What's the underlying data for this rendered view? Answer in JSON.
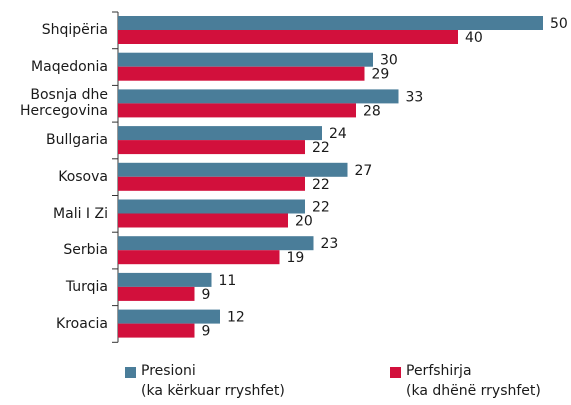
{
  "chart_data": {
    "type": "bar",
    "orientation": "horizontal",
    "categories": [
      "Shqipëria",
      "Maqedonia",
      "Bosnja dhe\nHercegovina",
      "Bullgaria",
      "Kosova",
      "Mali I Zi",
      "Serbia",
      "Turqia",
      "Kroacia"
    ],
    "series": [
      {
        "name": "Presioni\n(ka kërkuar rryshfet)",
        "color": "#4a7d99",
        "values": [
          50,
          30,
          33,
          24,
          27,
          22,
          23,
          11,
          12
        ]
      },
      {
        "name": "Perfshirja\n(ka dhënë rryshfet)",
        "color": "#d2103c",
        "values": [
          40,
          29,
          28,
          22,
          22,
          20,
          19,
          9,
          9
        ]
      }
    ]
  }
}
